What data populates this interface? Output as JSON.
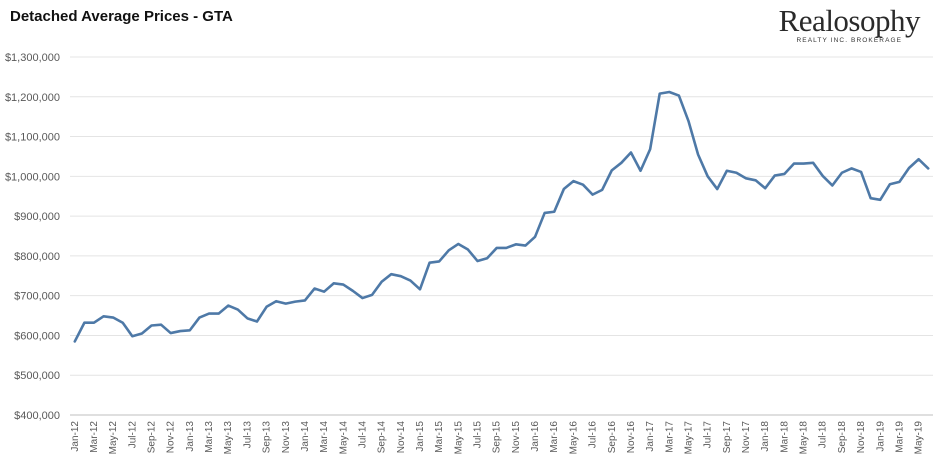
{
  "title": "Detached Average Prices - GTA",
  "logo": {
    "name": "Realosophy",
    "subtitle": "REALTY INC. BROKERAGE"
  },
  "chart_data": {
    "type": "line",
    "title": "Detached Average Prices - GTA",
    "xlabel": "",
    "ylabel": "",
    "ylim": [
      400000,
      1300000
    ],
    "yticks": [
      400000,
      500000,
      600000,
      700000,
      800000,
      900000,
      1000000,
      1100000,
      1200000,
      1300000
    ],
    "ytick_labels": [
      "$400,000",
      "$500,000",
      "$600,000",
      "$700,000",
      "$800,000",
      "$900,000",
      "$1,000,000",
      "$1,100,000",
      "$1,200,000",
      "$1,300,000"
    ],
    "grid": true,
    "legend": "none",
    "line_color": "#4e79a7",
    "x": [
      "Jan-12",
      "Feb-12",
      "Mar-12",
      "Apr-12",
      "May-12",
      "Jun-12",
      "Jul-12",
      "Aug-12",
      "Sep-12",
      "Oct-12",
      "Nov-12",
      "Dec-12",
      "Jan-13",
      "Feb-13",
      "Mar-13",
      "Apr-13",
      "May-13",
      "Jun-13",
      "Jul-13",
      "Aug-13",
      "Sep-13",
      "Oct-13",
      "Nov-13",
      "Dec-13",
      "Jan-14",
      "Feb-14",
      "Mar-14",
      "Apr-14",
      "May-14",
      "Jun-14",
      "Jul-14",
      "Aug-14",
      "Sep-14",
      "Oct-14",
      "Nov-14",
      "Dec-14",
      "Jan-15",
      "Feb-15",
      "Mar-15",
      "Apr-15",
      "May-15",
      "Jun-15",
      "Jul-15",
      "Aug-15",
      "Sep-15",
      "Oct-15",
      "Nov-15",
      "Dec-15",
      "Jan-16",
      "Feb-16",
      "Mar-16",
      "Apr-16",
      "May-16",
      "Jun-16",
      "Jul-16",
      "Aug-16",
      "Sep-16",
      "Oct-16",
      "Nov-16",
      "Dec-16",
      "Jan-17",
      "Feb-17",
      "Mar-17",
      "Apr-17",
      "May-17",
      "Jun-17",
      "Jul-17",
      "Aug-17",
      "Sep-17",
      "Oct-17",
      "Nov-17",
      "Dec-17",
      "Jan-18",
      "Feb-18",
      "Mar-18",
      "Apr-18",
      "May-18",
      "Jun-18",
      "Jul-18",
      "Aug-18",
      "Sep-18",
      "Oct-18",
      "Nov-18",
      "Dec-18",
      "Jan-19",
      "Feb-19",
      "Mar-19",
      "Apr-19",
      "May-19",
      "Jun-19"
    ],
    "x_tick_labels_shown": [
      "Jan-12",
      "Mar-12",
      "May-12",
      "Jul-12",
      "Sep-12",
      "Nov-12",
      "Jan-13",
      "Mar-13",
      "May-13",
      "Jul-13",
      "Sep-13",
      "Nov-13",
      "Jan-14",
      "Mar-14",
      "May-14",
      "Jul-14",
      "Sep-14",
      "Nov-14",
      "Jan-15",
      "Mar-15",
      "May-15",
      "Jul-15",
      "Sep-15",
      "Nov-15",
      "Jan-16",
      "Mar-16",
      "May-16",
      "Jul-16",
      "Sep-16",
      "Nov-16",
      "Jan-17",
      "Mar-17",
      "May-17",
      "Jul-17",
      "Sep-17",
      "Nov-17",
      "Jan-18",
      "Mar-18",
      "May-18",
      "Jul-18",
      "Sep-18",
      "Nov-18",
      "Jan-19",
      "Mar-19",
      "May-19"
    ],
    "series": [
      {
        "values": [
          585000,
          632000,
          632000,
          648000,
          645000,
          632000,
          598000,
          605000,
          625000,
          627000,
          606000,
          611000,
          613000,
          645000,
          655000,
          655000,
          675000,
          665000,
          643000,
          635000,
          672000,
          686000,
          680000,
          685000,
          688000,
          718000,
          710000,
          731000,
          728000,
          712000,
          694000,
          702000,
          735000,
          754000,
          749000,
          738000,
          716000,
          783000,
          786000,
          814000,
          830000,
          816000,
          787000,
          794000,
          820000,
          820000,
          829000,
          826000,
          848000,
          908000,
          911000,
          968000,
          988000,
          979000,
          954000,
          966000,
          1015000,
          1034000,
          1060000,
          1014000,
          1068000,
          1208000,
          1212000,
          1203000,
          1139000,
          1055000,
          1000000,
          968000,
          1014000,
          1009000,
          995000,
          990000,
          970000,
          1002000,
          1006000,
          1032000,
          1032000,
          1034000,
          1001000,
          977000,
          1009000,
          1020000,
          1011000,
          945000,
          941000,
          980000,
          986000,
          1021000,
          1043000,
          1020000
        ]
      }
    ]
  }
}
